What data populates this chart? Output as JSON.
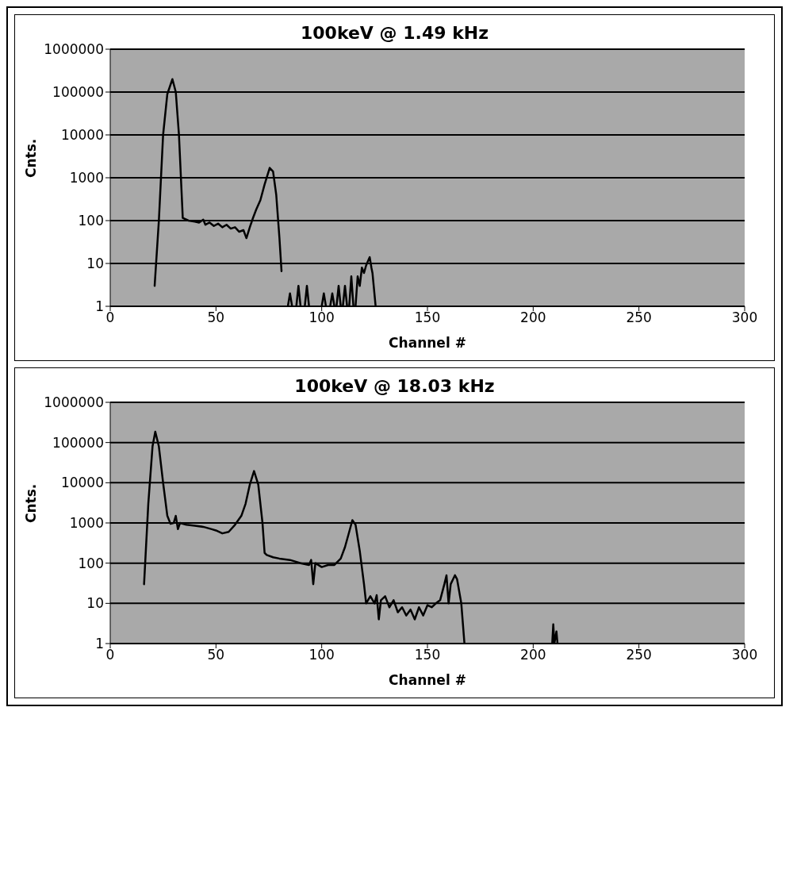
{
  "chart_data": [
    {
      "type": "line",
      "title": "100keV @ 1.49 kHz",
      "xlabel": "Channel #",
      "ylabel": "Cnts.",
      "log": "y",
      "grid": "y",
      "color": "#000000",
      "xlim": [
        0,
        300
      ],
      "xticks": [
        0,
        50,
        100,
        150,
        200,
        250,
        300
      ],
      "ylim": [
        1,
        1000000
      ],
      "yticks": [
        1,
        10,
        100,
        1000,
        10000,
        100000,
        1000000
      ],
      "x": [
        21,
        23,
        25,
        27,
        29.4,
        31,
        32.5,
        34.3,
        37,
        40,
        42,
        44,
        45,
        47,
        49,
        51,
        53,
        55,
        57,
        59,
        61,
        63,
        64.4,
        66,
        67.5,
        69,
        71,
        73,
        75.4,
        77,
        78.5,
        80,
        81,
        82,
        84,
        85,
        86,
        87,
        88,
        89,
        90,
        91,
        92,
        93,
        94,
        96,
        100,
        101,
        102,
        103,
        104,
        105,
        106,
        107,
        108,
        109,
        110,
        111,
        112,
        113,
        114,
        115,
        116,
        117,
        118,
        119,
        120,
        121,
        122.7,
        123.5,
        124,
        125.5
      ],
      "values": [
        3,
        100,
        10000,
        90000,
        200000,
        100000,
        10000,
        115,
        100,
        95,
        90,
        105,
        80,
        90,
        75,
        85,
        70,
        80,
        65,
        70,
        55,
        60,
        39,
        70,
        115,
        180,
        300,
        700,
        1700,
        1400,
        400,
        40,
        6.6,
        null,
        1,
        2,
        1,
        null,
        1,
        3,
        1,
        null,
        1,
        3,
        1,
        null,
        1,
        2,
        1,
        null,
        1,
        2,
        1,
        1,
        3,
        1,
        1,
        3,
        1,
        1,
        5,
        1,
        1,
        5,
        3,
        8,
        6,
        9,
        14,
        8,
        6,
        1
      ]
    },
    {
      "type": "line",
      "title": "100keV @ 18.03 kHz",
      "xlabel": "Channel #",
      "ylabel": "Cnts.",
      "log": "y",
      "grid": "y",
      "color": "#000000",
      "xlim": [
        0,
        300
      ],
      "xticks": [
        0,
        50,
        100,
        150,
        200,
        250,
        300
      ],
      "ylim": [
        1,
        1000000
      ],
      "yticks": [
        1,
        10,
        100,
        1000,
        10000,
        100000,
        1000000
      ],
      "x": [
        16,
        18,
        20,
        21.3,
        23,
        25,
        27,
        28.5,
        30,
        31,
        32,
        33,
        36,
        40,
        44,
        48,
        50,
        53,
        56,
        59,
        62,
        64,
        66,
        68,
        70,
        72,
        73,
        74,
        77,
        80,
        85,
        90,
        94,
        95,
        96,
        97,
        100,
        103,
        106,
        109,
        111,
        113,
        114.5,
        116,
        118,
        120,
        121,
        123,
        125,
        126,
        127,
        128,
        130,
        132,
        134,
        136,
        138,
        140,
        142,
        144,
        146,
        148,
        150,
        152,
        154,
        156,
        158,
        159,
        160,
        161,
        163,
        164,
        166,
        167.5,
        168,
        209,
        209.5,
        210,
        211,
        211.5
      ],
      "values": [
        30,
        3000,
        80000,
        186000,
        80000,
        10000,
        1500,
        950,
        1000,
        1500,
        700,
        1000,
        900,
        850,
        800,
        700,
        650,
        550,
        600,
        900,
        1500,
        3000,
        9000,
        19500,
        9000,
        1000,
        180,
        160,
        140,
        130,
        120,
        100,
        90,
        120,
        30,
        100,
        80,
        90,
        90,
        130,
        250,
        600,
        1170,
        900,
        200,
        30,
        10,
        15,
        10,
        16,
        4,
        12,
        15,
        8,
        12,
        6,
        8,
        5,
        7,
        4,
        8,
        5,
        9,
        8,
        10,
        12,
        30,
        50,
        10,
        30,
        50,
        40,
        10,
        1,
        null,
        1,
        3,
        1,
        2,
        1
      ]
    }
  ]
}
